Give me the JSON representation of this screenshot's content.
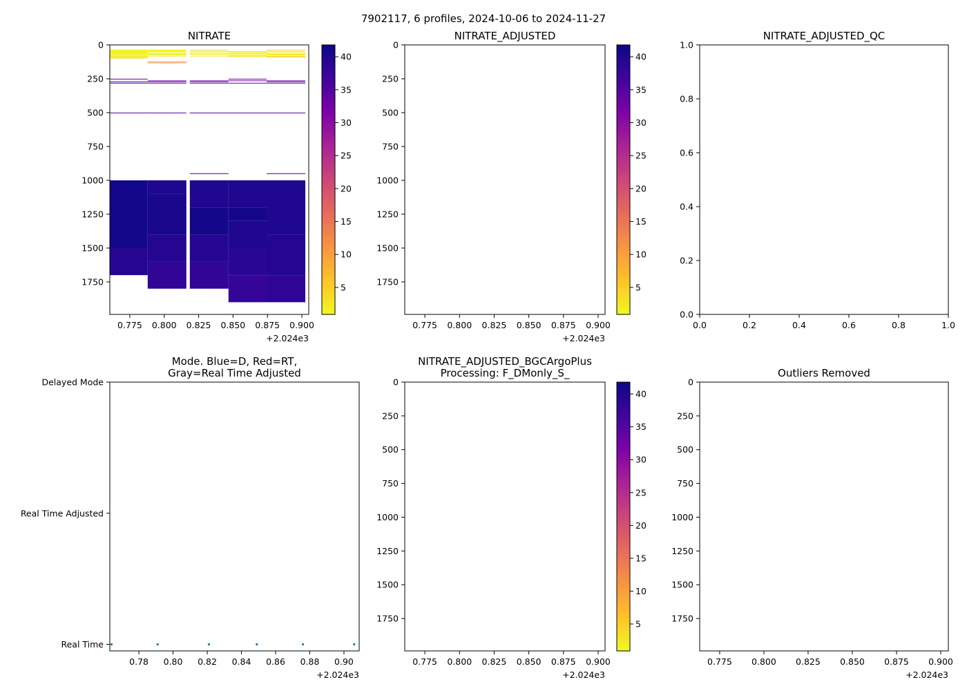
{
  "suptitle": "7902117, 6 profiles, 2024-10-06 to 2024-11-27",
  "colormap": "plasma_r",
  "point_color": "#1f77b4",
  "chart_data": [
    {
      "type": "heatmap",
      "title": [
        "NITRATE"
      ],
      "xlim": [
        0.7605,
        0.905
      ],
      "ylim": [
        1990,
        0
      ],
      "xticks": [
        0.775,
        0.8,
        0.825,
        0.85,
        0.875,
        0.9
      ],
      "xtick_labels": [
        "0.775",
        "0.800",
        "0.825",
        "0.850",
        "0.875",
        "0.900"
      ],
      "x_offset_label": "+2.024e3",
      "yticks": [
        0,
        250,
        500,
        750,
        1000,
        1250,
        1500,
        1750
      ],
      "ytick_labels": [
        "0",
        "250",
        "500",
        "750",
        "1000",
        "1250",
        "1500",
        "1750"
      ],
      "colorbar": {
        "range": [
          0.9,
          41.8
        ],
        "ticks": [
          5,
          10,
          15,
          20,
          25,
          30,
          35,
          40
        ],
        "tick_labels": [
          "5",
          "10",
          "15",
          "20",
          "25",
          "30",
          "35",
          "40"
        ]
      },
      "columns": [
        {
          "x": [
            0.7605,
            0.788
          ],
          "cells": [
            [
              35,
              75,
              1.5
            ],
            [
              78,
              88,
              2.5
            ],
            [
              90,
              100,
              3
            ],
            [
              250,
              254,
              33
            ],
            [
              270,
              274,
              33
            ],
            [
              280,
              284,
              33
            ],
            [
              500,
              504,
              35
            ],
            [
              1000,
              1500,
              41.3
            ],
            [
              1500,
              1700,
              39.5
            ]
          ]
        },
        {
          "x": [
            0.788,
            0.8161
          ],
          "cells": [
            [
              35,
              55,
              1.5
            ],
            [
              60,
              75,
              2
            ],
            [
              80,
              85,
              3
            ],
            [
              122,
              126,
              10
            ],
            [
              130,
              134,
              12
            ],
            [
              262,
              266,
              33
            ],
            [
              270,
              274,
              33
            ],
            [
              280,
              284,
              33
            ],
            [
              500,
              504,
              35
            ],
            [
              1000,
              1100,
              40
            ],
            [
              1100,
              1400,
              40.6
            ],
            [
              1400,
              1600,
              39.5
            ],
            [
              1600,
              1800,
              38.3
            ]
          ]
        },
        {
          "x": [
            0.8186,
            0.8467
          ],
          "cells": [
            [
              35,
              38,
              3
            ],
            [
              45,
              55,
              1.5
            ],
            [
              62,
              72,
              2
            ],
            [
              80,
              84,
              3
            ],
            [
              262,
              266,
              33
            ],
            [
              270,
              274,
              33
            ],
            [
              280,
              284,
              33
            ],
            [
              500,
              504,
              35
            ],
            [
              948,
              952,
              38
            ],
            [
              1000,
              1200,
              40
            ],
            [
              1200,
              1400,
              41
            ],
            [
              1400,
              1600,
              39.5
            ],
            [
              1600,
              1800,
              38.3
            ]
          ]
        },
        {
          "x": [
            0.8467,
            0.8744
          ],
          "cells": [
            [
              45,
              55,
              1.5
            ],
            [
              58,
              68,
              2
            ],
            [
              72,
              78,
              2
            ],
            [
              80,
              88,
              3
            ],
            [
              250,
              254,
              33
            ],
            [
              262,
              266,
              33
            ],
            [
              280,
              284,
              33
            ],
            [
              500,
              504,
              35
            ],
            [
              1000,
              1200,
              40
            ],
            [
              1200,
              1300,
              41
            ],
            [
              1300,
              1500,
              40
            ],
            [
              1500,
              1700,
              39
            ],
            [
              1700,
              1900,
              38
            ]
          ]
        },
        {
          "x": [
            0.8744,
            0.9025
          ],
          "cells": [
            [
              35,
              38,
              4
            ],
            [
              45,
              55,
              1.5
            ],
            [
              62,
              78,
              2
            ],
            [
              82,
              85,
              4
            ],
            [
              88,
              92,
              5
            ],
            [
              262,
              266,
              33
            ],
            [
              270,
              274,
              33
            ],
            [
              280,
              284,
              33
            ],
            [
              500,
              504,
              35
            ],
            [
              948,
              952,
              38
            ],
            [
              1000,
              1400,
              40
            ],
            [
              1400,
              1700,
              39.5
            ],
            [
              1700,
              1900,
              38.5
            ]
          ]
        }
      ]
    },
    {
      "type": "heatmap",
      "title": [
        "NITRATE_ADJUSTED"
      ],
      "xlim": [
        0.7605,
        0.905
      ],
      "ylim": [
        1990,
        0
      ],
      "xticks": [
        0.775,
        0.8,
        0.825,
        0.85,
        0.875,
        0.9
      ],
      "xtick_labels": [
        "0.775",
        "0.800",
        "0.825",
        "0.850",
        "0.875",
        "0.900"
      ],
      "x_offset_label": "+2.024e3",
      "yticks": [
        0,
        250,
        500,
        750,
        1000,
        1250,
        1500,
        1750
      ],
      "ytick_labels": [
        "0",
        "250",
        "500",
        "750",
        "1000",
        "1250",
        "1500",
        "1750"
      ],
      "colorbar": {
        "range": [
          0.9,
          41.8
        ],
        "ticks": [
          5,
          10,
          15,
          20,
          25,
          30,
          35,
          40
        ],
        "tick_labels": [
          "5",
          "10",
          "15",
          "20",
          "25",
          "30",
          "35",
          "40"
        ]
      },
      "columns": []
    },
    {
      "type": "heatmap",
      "title": [
        "NITRATE_ADJUSTED_QC"
      ],
      "xlim": [
        0,
        1
      ],
      "ylim": [
        0,
        1
      ],
      "xticks": [
        0,
        0.2,
        0.4,
        0.6,
        0.8,
        1.0
      ],
      "xtick_labels": [
        "0.0",
        "0.2",
        "0.4",
        "0.6",
        "0.8",
        "1.0"
      ],
      "yticks": [
        0,
        0.2,
        0.4,
        0.6,
        0.8,
        1.0
      ],
      "ytick_labels": [
        "0.0",
        "0.2",
        "0.4",
        "0.6",
        "0.8",
        "1.0"
      ],
      "columns": []
    },
    {
      "type": "scatter",
      "title": [
        "Mode. Blue=D, Red=RT,",
        "Gray=Real Time Adjusted"
      ],
      "xlim": [
        0.763,
        0.9089
      ],
      "ylim": [
        -0.05,
        2.0
      ],
      "xticks": [
        0.78,
        0.8,
        0.82,
        0.84,
        0.86,
        0.88,
        0.9
      ],
      "xtick_labels": [
        "0.78",
        "0.80",
        "0.82",
        "0.84",
        "0.86",
        "0.88",
        "0.90"
      ],
      "x_offset_label": "+2.024e3",
      "yticks": [
        2,
        1,
        0
      ],
      "ytick_labels": [
        "Delayed Mode",
        "Real Time Adjusted",
        "Real Time"
      ],
      "points": {
        "x": [
          0.764,
          0.791,
          0.821,
          0.849,
          0.876,
          0.906
        ],
        "y": [
          0,
          0,
          0,
          0,
          0,
          0
        ]
      }
    },
    {
      "type": "heatmap",
      "title": [
        "NITRATE_ADJUSTED_BGCArgoPlus",
        "Processing: F_DMonly_S_"
      ],
      "xlim": [
        0.7605,
        0.905
      ],
      "ylim": [
        1990,
        0
      ],
      "xticks": [
        0.775,
        0.8,
        0.825,
        0.85,
        0.875,
        0.9
      ],
      "xtick_labels": [
        "0.775",
        "0.800",
        "0.825",
        "0.850",
        "0.875",
        "0.900"
      ],
      "x_offset_label": "+2.024e3",
      "yticks": [
        0,
        250,
        500,
        750,
        1000,
        1250,
        1500,
        1750
      ],
      "ytick_labels": [
        "0",
        "250",
        "500",
        "750",
        "1000",
        "1250",
        "1500",
        "1750"
      ],
      "colorbar": {
        "range": [
          0.9,
          41.8
        ],
        "ticks": [
          5,
          10,
          15,
          20,
          25,
          30,
          35,
          40
        ],
        "tick_labels": [
          "5",
          "10",
          "15",
          "20",
          "25",
          "30",
          "35",
          "40"
        ]
      },
      "columns": []
    },
    {
      "type": "heatmap",
      "title": [
        "Outliers Removed"
      ],
      "xlim": [
        0.7637,
        0.9043
      ],
      "ylim": [
        1990,
        0
      ],
      "xticks": [
        0.775,
        0.8,
        0.825,
        0.85,
        0.875,
        0.9
      ],
      "xtick_labels": [
        "0.775",
        "0.800",
        "0.825",
        "0.850",
        "0.875",
        "0.900"
      ],
      "x_offset_label": "+2.024e3",
      "yticks": [
        0,
        250,
        500,
        750,
        1000,
        1250,
        1500,
        1750
      ],
      "ytick_labels": [
        "0",
        "250",
        "500",
        "750",
        "1000",
        "1250",
        "1500",
        "1750"
      ],
      "columns": []
    }
  ]
}
